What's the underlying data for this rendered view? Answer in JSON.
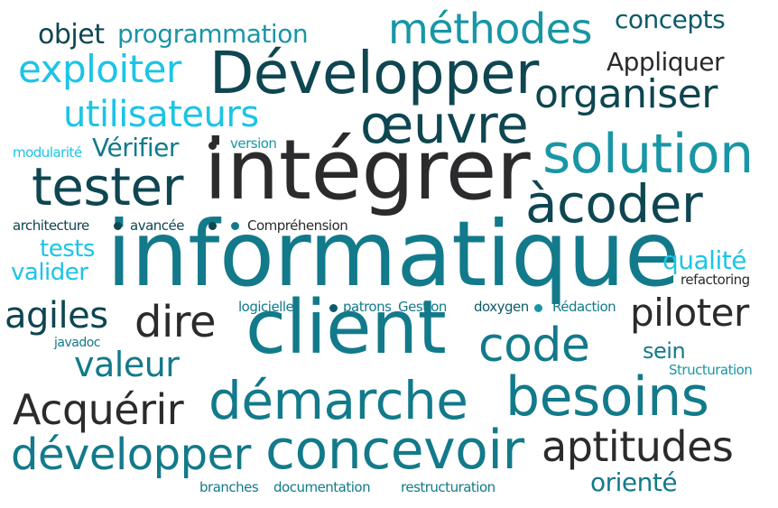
{
  "colors": {
    "dark": "#2b2b2e",
    "navy": "#0e4651",
    "petrol": "#0d5a69",
    "teal": "#127a8a",
    "sea": "#1896a6",
    "cyan": "#1cc4e6"
  },
  "words": [
    {
      "text": "informatique",
      "color": "teal"
    },
    {
      "text": "intégrer",
      "color": "dark"
    },
    {
      "text": "client",
      "color": "teal"
    },
    {
      "text": "Développer",
      "color": "navy"
    },
    {
      "text": "concevoir",
      "color": "teal"
    },
    {
      "text": "démarche",
      "color": "teal"
    },
    {
      "text": "solution",
      "color": "sea"
    },
    {
      "text": "besoins",
      "color": "teal"
    },
    {
      "text": "œuvre",
      "color": "navy"
    },
    {
      "text": "àcoder",
      "color": "navy"
    },
    {
      "text": "tester",
      "color": "navy"
    },
    {
      "text": "code",
      "color": "teal"
    },
    {
      "text": "développer",
      "color": "teal"
    },
    {
      "text": "méthodes",
      "color": "sea"
    },
    {
      "text": "aptitudes",
      "color": "dark"
    },
    {
      "text": "organiser",
      "color": "navy"
    },
    {
      "text": "dire",
      "color": "dark"
    },
    {
      "text": "Acquérir",
      "color": "dark"
    },
    {
      "text": "piloter",
      "color": "dark"
    },
    {
      "text": "exploiter",
      "color": "cyan"
    },
    {
      "text": "utilisateurs",
      "color": "cyan"
    },
    {
      "text": "agiles",
      "color": "navy"
    },
    {
      "text": "valeur",
      "color": "teal"
    },
    {
      "text": "concepts",
      "color": "petrol"
    },
    {
      "text": "Appliquer",
      "color": "dark"
    },
    {
      "text": "programmation",
      "color": "sea"
    },
    {
      "text": "objet",
      "color": "navy"
    },
    {
      "text": "orienté",
      "color": "teal"
    },
    {
      "text": "Vérifier",
      "color": "teal"
    },
    {
      "text": "tests",
      "color": "cyan"
    },
    {
      "text": "valider",
      "color": "cyan"
    },
    {
      "text": "qualité",
      "color": "cyan"
    },
    {
      "text": "sein",
      "color": "teal"
    },
    {
      "text": "modularité",
      "color": "cyan"
    },
    {
      "text": "version",
      "color": "sea"
    },
    {
      "text": "architecture",
      "color": "navy"
    },
    {
      "text": "avancée",
      "color": "navy"
    },
    {
      "text": "Compréhension",
      "color": "dark"
    },
    {
      "text": "refactoring",
      "color": "dark"
    },
    {
      "text": "logicielle",
      "color": "teal"
    },
    {
      "text": "patrons",
      "color": "teal"
    },
    {
      "text": "Gestion",
      "color": "teal"
    },
    {
      "text": "doxygen",
      "color": "petrol"
    },
    {
      "text": "Rédaction",
      "color": "teal"
    },
    {
      "text": "javadoc",
      "color": "teal"
    },
    {
      "text": "Structuration",
      "color": "sea"
    },
    {
      "text": "branches",
      "color": "teal"
    },
    {
      "text": "documentation",
      "color": "teal"
    },
    {
      "text": "restructuration",
      "color": "teal"
    }
  ],
  "dots": [
    {
      "color": "dark"
    },
    {
      "color": "navy"
    },
    {
      "color": "navy"
    },
    {
      "color": "teal"
    },
    {
      "color": "petrol"
    },
    {
      "color": "sea"
    }
  ]
}
